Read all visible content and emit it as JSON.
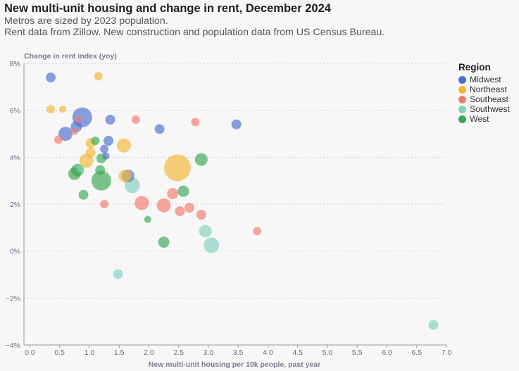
{
  "chart_data": {
    "type": "scatter",
    "title": "New multi-unit housing and change in rent, December 2024",
    "subtitle": [
      "Metros are sized by 2023 population.",
      "Rent data from Zillow. New construction and population data from US Census Bureau."
    ],
    "xlabel": "New multi-unit housing per 10k people, past year",
    "ylabel": "Change in rent index (yoy)",
    "xlim": [
      -0.1,
      7.0
    ],
    "ylim": [
      -4,
      8
    ],
    "x_ticks": [
      "0.0",
      "0.5",
      "1.0",
      "1.5",
      "2.0",
      "2.5",
      "3.0",
      "3.5",
      "4.0",
      "4.5",
      "5.0",
      "5.5",
      "6.0",
      "6.5",
      "7.0"
    ],
    "x_tick_values": [
      0,
      0.5,
      1,
      1.5,
      2,
      2.5,
      3,
      3.5,
      4,
      4.5,
      5,
      5.5,
      6,
      6.5,
      7
    ],
    "y_ticks": [
      "8%",
      "6%",
      "4%",
      "2%",
      "0%",
      "−2%",
      "−4%"
    ],
    "y_tick_values": [
      8,
      6,
      4,
      2,
      0,
      -2,
      -4
    ],
    "grid": "horizontal-dotted",
    "legend_title": "Region",
    "legend_position": "right",
    "series": [
      {
        "name": "Midwest",
        "color": "#4a6fd1",
        "points": [
          [
            0.35,
            7.4,
            7
          ],
          [
            0.88,
            5.7,
            14
          ],
          [
            0.6,
            5.0,
            10
          ],
          [
            0.78,
            5.3,
            8
          ],
          [
            1.35,
            5.6,
            7
          ],
          [
            1.32,
            4.7,
            7
          ],
          [
            1.25,
            4.35,
            6
          ],
          [
            1.28,
            4.05,
            5
          ],
          [
            1.65,
            3.2,
            9
          ],
          [
            2.18,
            5.2,
            7
          ],
          [
            3.47,
            5.4,
            7
          ]
        ]
      },
      {
        "name": "Northeast",
        "color": "#f5b731",
        "points": [
          [
            1.15,
            7.45,
            6
          ],
          [
            0.35,
            6.05,
            6
          ],
          [
            0.55,
            6.05,
            5
          ],
          [
            1.02,
            4.6,
            7
          ],
          [
            1.02,
            4.2,
            7
          ],
          [
            0.95,
            3.85,
            10
          ],
          [
            1.58,
            4.5,
            10
          ],
          [
            1.6,
            3.2,
            9
          ],
          [
            2.48,
            3.55,
            19
          ]
        ]
      },
      {
        "name": "Southeast",
        "color": "#f47a6a",
        "points": [
          [
            0.48,
            4.75,
            6
          ],
          [
            0.82,
            5.6,
            5
          ],
          [
            0.75,
            5.1,
            5
          ],
          [
            1.78,
            5.6,
            6
          ],
          [
            2.78,
            5.5,
            6
          ],
          [
            1.25,
            2.0,
            6
          ],
          [
            1.88,
            2.05,
            10
          ],
          [
            2.25,
            1.95,
            10
          ],
          [
            2.4,
            2.45,
            8
          ],
          [
            2.52,
            1.7,
            7
          ],
          [
            2.68,
            1.85,
            7
          ],
          [
            2.88,
            1.55,
            7
          ],
          [
            3.82,
            0.85,
            6
          ]
        ]
      },
      {
        "name": "Southwest",
        "color": "#7fd3be",
        "points": [
          [
            0.85,
            3.5,
            5
          ],
          [
            1.72,
            2.8,
            11
          ],
          [
            2.95,
            0.85,
            9
          ],
          [
            3.05,
            0.25,
            11
          ],
          [
            1.48,
            -0.98,
            7
          ],
          [
            6.78,
            -3.15,
            7
          ]
        ]
      },
      {
        "name": "West",
        "color": "#3aa653",
        "points": [
          [
            1.1,
            4.7,
            6
          ],
          [
            1.2,
            3.95,
            7
          ],
          [
            1.18,
            3.45,
            7
          ],
          [
            0.8,
            3.45,
            9
          ],
          [
            0.75,
            3.3,
            9
          ],
          [
            0.9,
            2.4,
            7
          ],
          [
            1.2,
            3.0,
            14
          ],
          [
            2.58,
            2.55,
            8
          ],
          [
            2.88,
            3.9,
            9
          ],
          [
            1.98,
            1.35,
            5
          ],
          [
            2.25,
            0.38,
            8
          ]
        ]
      }
    ]
  }
}
